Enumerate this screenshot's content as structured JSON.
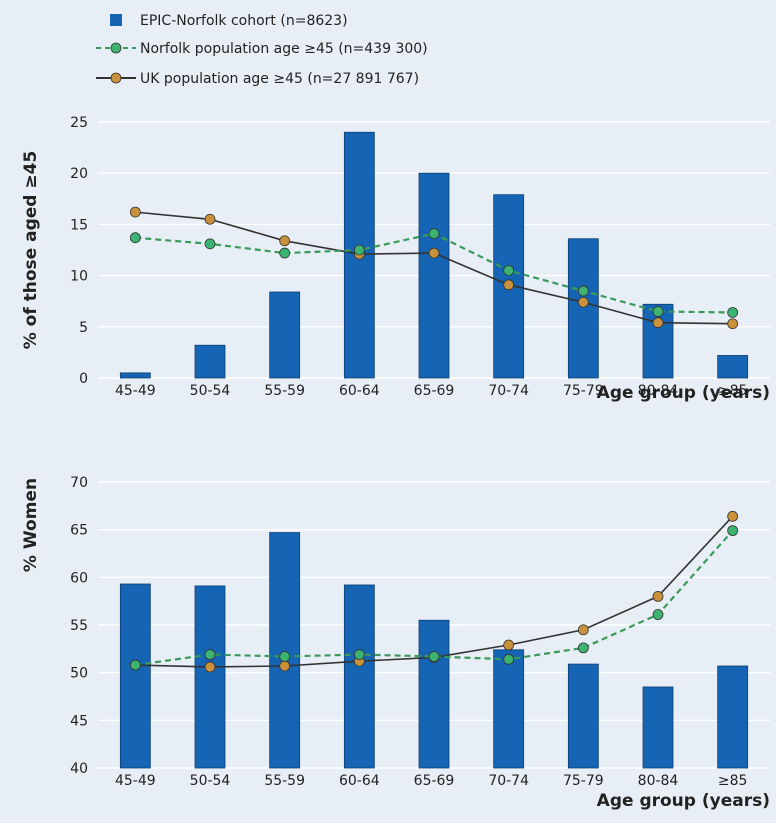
{
  "legend": [
    {
      "label": "EPIC-Norfolk cohort (n=8623)",
      "kind": "bar",
      "color": "#1565b4"
    },
    {
      "label": "Norfolk population age ≥45 (n=439 300)",
      "kind": "dashed-line",
      "color": "#3a9a5a",
      "marker": "#3cb371"
    },
    {
      "label": "UK population age ≥45 (n=27 891 767)",
      "kind": "solid-line",
      "color": "#333333",
      "marker": "#c8913a"
    }
  ],
  "chart_data": [
    {
      "type": "bar",
      "categories": [
        "45-49",
        "50-54",
        "55-59",
        "60-64",
        "65-69",
        "70-74",
        "75-79",
        "80-84",
        "≥85"
      ],
      "ylabel": "% of those aged ≥45",
      "xlabel": "Age group (years)",
      "ylim": [
        0,
        25
      ],
      "yticks": [
        0,
        5,
        10,
        15,
        20,
        25
      ],
      "grid": true,
      "legend_position": "top-left",
      "series": [
        {
          "name": "EPIC-Norfolk cohort (n=8623)",
          "type": "bar",
          "color": "#1565b4",
          "values": [
            0.5,
            3.2,
            8.4,
            24.0,
            20.0,
            17.9,
            13.6,
            7.2,
            2.2
          ]
        },
        {
          "name": "Norfolk population age ≥45 (n=439 300)",
          "type": "line",
          "style": "dashed",
          "color": "#3a9a5a",
          "marker_color": "#3cb371",
          "values": [
            13.7,
            13.1,
            12.2,
            12.5,
            14.1,
            10.5,
            8.5,
            6.5,
            6.4
          ]
        },
        {
          "name": "UK population age ≥45 (n=27 891 767)",
          "type": "line",
          "style": "solid",
          "color": "#333333",
          "marker_color": "#c8913a",
          "values": [
            16.2,
            15.5,
            13.4,
            12.1,
            12.2,
            9.1,
            7.4,
            5.4,
            5.3
          ]
        }
      ]
    },
    {
      "type": "bar",
      "categories": [
        "45-49",
        "50-54",
        "55-59",
        "60-64",
        "65-69",
        "70-74",
        "75-79",
        "80-84",
        "≥85"
      ],
      "ylabel": "% Women",
      "xlabel": "Age group (years)",
      "ylim": [
        40,
        70
      ],
      "yticks": [
        40,
        45,
        50,
        55,
        60,
        65,
        70
      ],
      "grid": true,
      "series": [
        {
          "name": "EPIC-Norfolk cohort (n=8623)",
          "type": "bar",
          "color": "#1565b4",
          "values": [
            59.3,
            59.1,
            64.7,
            59.2,
            55.5,
            52.4,
            50.9,
            48.5,
            50.7
          ]
        },
        {
          "name": "Norfolk population age ≥45 (n=439 300)",
          "type": "line",
          "style": "dashed",
          "color": "#3a9a5a",
          "marker_color": "#3cb371",
          "values": [
            50.8,
            51.9,
            51.7,
            51.9,
            51.7,
            51.4,
            52.6,
            56.1,
            64.9
          ]
        },
        {
          "name": "UK population age ≥45 (n=27 891 767)",
          "type": "line",
          "style": "solid",
          "color": "#333333",
          "marker_color": "#c8913a",
          "values": [
            50.8,
            50.6,
            50.7,
            51.2,
            51.6,
            52.9,
            54.5,
            58.0,
            66.4
          ]
        }
      ]
    }
  ]
}
